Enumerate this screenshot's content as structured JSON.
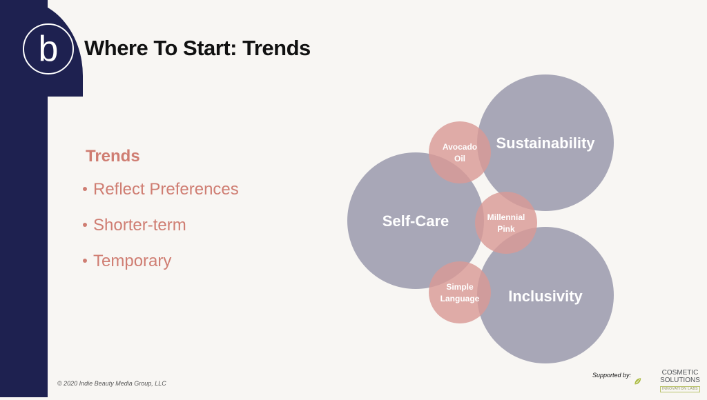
{
  "slide": {
    "title": "Where To Start: Trends",
    "section_heading": "Trends",
    "bullets": [
      "Reflect Preferences",
      "Shorter-term",
      "Temporary"
    ],
    "copyright": "© 2020 Indie Beauty Media Group, LLC"
  },
  "logo": {
    "letter": "b"
  },
  "diagram": {
    "large_circles": [
      {
        "label": "Sustainability"
      },
      {
        "label": "Self-Care"
      },
      {
        "label": "Inclusivity"
      }
    ],
    "small_circles": [
      {
        "line1": "Avocado",
        "line2": "Oil"
      },
      {
        "line1": "Millennial",
        "line2": "Pink"
      },
      {
        "line1": "Simple",
        "line2": "Language"
      }
    ],
    "colors": {
      "large": "#9c9cae",
      "small": "#d99a96",
      "sidebar": "#1e2150",
      "accent": "#cf7d72"
    }
  },
  "footer": {
    "supported_by": "Supported by:",
    "sponsor_name_line1": "COSMETIC",
    "sponsor_name_line2": "SOLUTIONS",
    "sponsor_sub": "INNOVATION LABS"
  }
}
